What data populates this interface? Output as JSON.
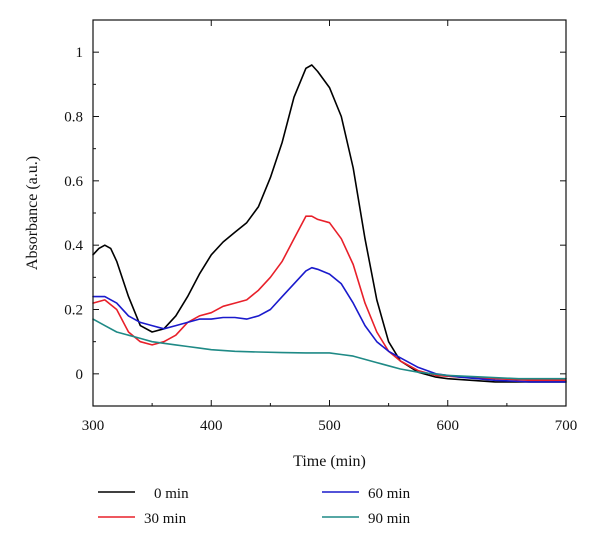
{
  "chart_data": {
    "type": "line",
    "title": "",
    "xlabel": "Time (min)",
    "ylabel": "Absorbance (a.u.)",
    "xlim": [
      300,
      700
    ],
    "ylim": [
      -0.1,
      1.1
    ],
    "x_ticks": [
      300,
      400,
      500,
      600,
      700
    ],
    "x_tick_labels": [
      "300",
      "400",
      "500",
      "600",
      "700"
    ],
    "y_ticks": [
      0,
      0.2,
      0.4,
      0.6,
      0.8,
      1.0
    ],
    "y_tick_labels": [
      "0",
      "0.2",
      "0.4",
      "0.6",
      "0.8",
      "1"
    ],
    "grid": false,
    "legend_position": "bottom",
    "series": [
      {
        "name": "0 min",
        "color": "#000000",
        "points": [
          [
            300,
            0.37
          ],
          [
            305,
            0.39
          ],
          [
            310,
            0.4
          ],
          [
            315,
            0.39
          ],
          [
            320,
            0.35
          ],
          [
            330,
            0.24
          ],
          [
            340,
            0.15
          ],
          [
            350,
            0.13
          ],
          [
            360,
            0.14
          ],
          [
            370,
            0.18
          ],
          [
            380,
            0.24
          ],
          [
            390,
            0.31
          ],
          [
            400,
            0.37
          ],
          [
            410,
            0.41
          ],
          [
            420,
            0.44
          ],
          [
            430,
            0.47
          ],
          [
            440,
            0.52
          ],
          [
            450,
            0.61
          ],
          [
            460,
            0.72
          ],
          [
            470,
            0.86
          ],
          [
            480,
            0.95
          ],
          [
            485,
            0.96
          ],
          [
            490,
            0.94
          ],
          [
            500,
            0.89
          ],
          [
            510,
            0.8
          ],
          [
            520,
            0.64
          ],
          [
            530,
            0.42
          ],
          [
            540,
            0.23
          ],
          [
            550,
            0.1
          ],
          [
            560,
            0.04
          ],
          [
            575,
            0.005
          ],
          [
            590,
            -0.01
          ],
          [
            600,
            -0.015
          ],
          [
            620,
            -0.02
          ],
          [
            640,
            -0.025
          ],
          [
            660,
            -0.025
          ],
          [
            680,
            -0.025
          ],
          [
            700,
            -0.025
          ]
        ]
      },
      {
        "name": "30 min",
        "color": "#e8202a",
        "points": [
          [
            300,
            0.22
          ],
          [
            310,
            0.23
          ],
          [
            320,
            0.2
          ],
          [
            330,
            0.13
          ],
          [
            340,
            0.1
          ],
          [
            350,
            0.09
          ],
          [
            360,
            0.1
          ],
          [
            370,
            0.12
          ],
          [
            380,
            0.16
          ],
          [
            390,
            0.18
          ],
          [
            400,
            0.19
          ],
          [
            410,
            0.21
          ],
          [
            420,
            0.22
          ],
          [
            430,
            0.23
          ],
          [
            440,
            0.26
          ],
          [
            450,
            0.3
          ],
          [
            460,
            0.35
          ],
          [
            470,
            0.42
          ],
          [
            480,
            0.49
          ],
          [
            485,
            0.49
          ],
          [
            490,
            0.48
          ],
          [
            500,
            0.47
          ],
          [
            510,
            0.42
          ],
          [
            520,
            0.34
          ],
          [
            530,
            0.22
          ],
          [
            540,
            0.13
          ],
          [
            550,
            0.07
          ],
          [
            560,
            0.04
          ],
          [
            575,
            0.01
          ],
          [
            590,
            -0.005
          ],
          [
            610,
            -0.01
          ],
          [
            640,
            -0.015
          ],
          [
            670,
            -0.02
          ],
          [
            700,
            -0.02
          ]
        ]
      },
      {
        "name": "60 min",
        "color": "#1a1acc",
        "points": [
          [
            300,
            0.24
          ],
          [
            310,
            0.24
          ],
          [
            320,
            0.22
          ],
          [
            330,
            0.18
          ],
          [
            340,
            0.16
          ],
          [
            350,
            0.15
          ],
          [
            360,
            0.14
          ],
          [
            370,
            0.15
          ],
          [
            380,
            0.16
          ],
          [
            390,
            0.17
          ],
          [
            400,
            0.17
          ],
          [
            410,
            0.175
          ],
          [
            420,
            0.175
          ],
          [
            430,
            0.17
          ],
          [
            440,
            0.18
          ],
          [
            450,
            0.2
          ],
          [
            460,
            0.24
          ],
          [
            470,
            0.28
          ],
          [
            480,
            0.32
          ],
          [
            485,
            0.33
          ],
          [
            490,
            0.325
          ],
          [
            500,
            0.31
          ],
          [
            510,
            0.28
          ],
          [
            520,
            0.22
          ],
          [
            530,
            0.15
          ],
          [
            540,
            0.1
          ],
          [
            550,
            0.07
          ],
          [
            560,
            0.05
          ],
          [
            575,
            0.02
          ],
          [
            590,
            0.0
          ],
          [
            610,
            -0.01
          ],
          [
            640,
            -0.02
          ],
          [
            670,
            -0.025
          ],
          [
            700,
            -0.025
          ]
        ]
      },
      {
        "name": "90 min",
        "color": "#1f8a86",
        "points": [
          [
            300,
            0.17
          ],
          [
            310,
            0.15
          ],
          [
            320,
            0.13
          ],
          [
            330,
            0.12
          ],
          [
            340,
            0.11
          ],
          [
            350,
            0.1
          ],
          [
            360,
            0.095
          ],
          [
            370,
            0.09
          ],
          [
            380,
            0.085
          ],
          [
            390,
            0.08
          ],
          [
            400,
            0.075
          ],
          [
            420,
            0.07
          ],
          [
            440,
            0.068
          ],
          [
            460,
            0.066
          ],
          [
            480,
            0.065
          ],
          [
            500,
            0.065
          ],
          [
            510,
            0.06
          ],
          [
            520,
            0.055
          ],
          [
            530,
            0.045
          ],
          [
            540,
            0.035
          ],
          [
            550,
            0.025
          ],
          [
            560,
            0.015
          ],
          [
            575,
            0.005
          ],
          [
            600,
            -0.005
          ],
          [
            630,
            -0.01
          ],
          [
            660,
            -0.015
          ],
          [
            700,
            -0.015
          ]
        ]
      }
    ]
  }
}
